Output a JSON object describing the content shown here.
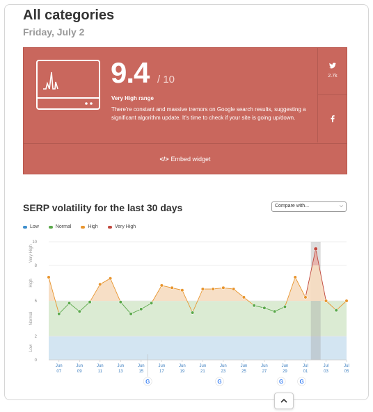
{
  "header": {
    "title": "All categories",
    "date": "Friday, July 2"
  },
  "score_panel": {
    "score": "9.4",
    "out_of": "/ 10",
    "range_label": "Very High range",
    "description": "There're constant and massive tremors on Google search results, suggesting a significant algorithm update. It's time to check if your site is going up/down.",
    "twitter_count": "2.7k",
    "embed_label": "Embed widget",
    "icons": [
      "monitor-icon",
      "twitter-icon",
      "facebook-icon",
      "code-icon"
    ],
    "background_color": "#c9675d"
  },
  "volatility": {
    "title": "SERP volatility for the last 30 days",
    "compare_placeholder": "Compare with..."
  },
  "chart_data": {
    "type": "line",
    "legend": [
      {
        "name": "Low",
        "color": "#3d8ecc"
      },
      {
        "name": "Normal",
        "color": "#5aa84a"
      },
      {
        "name": "High",
        "color": "#e8952e"
      },
      {
        "name": "Very High",
        "color": "#c0473d"
      }
    ],
    "y_ticks": [
      "0",
      "2",
      "5",
      "8",
      "10"
    ],
    "bands": [
      {
        "label": "Low",
        "from": 0,
        "to": 2,
        "color": "#d3e5f2"
      },
      {
        "label": "Normal",
        "from": 2,
        "to": 5,
        "color": "#dbebd3"
      },
      {
        "label": "High",
        "from": 5,
        "to": 8,
        "color": "#ffffff"
      },
      {
        "label": "Very High",
        "from": 8,
        "to": 10,
        "color": "#ffffff"
      }
    ],
    "x_labels": [
      {
        "month": "Jun",
        "day": "07"
      },
      {
        "month": "Jun",
        "day": "09"
      },
      {
        "month": "Jun",
        "day": "11"
      },
      {
        "month": "Jun",
        "day": "13"
      },
      {
        "month": "Jun",
        "day": "15"
      },
      {
        "month": "Jun",
        "day": "17"
      },
      {
        "month": "Jun",
        "day": "19"
      },
      {
        "month": "Jun",
        "day": "21"
      },
      {
        "month": "Jun",
        "day": "23"
      },
      {
        "month": "Jun",
        "day": "25"
      },
      {
        "month": "Jun",
        "day": "27"
      },
      {
        "month": "Jun",
        "day": "29"
      },
      {
        "month": "Jul",
        "day": "01"
      },
      {
        "month": "Jul",
        "day": "03"
      },
      {
        "month": "Jul",
        "day": "05"
      }
    ],
    "values": [
      7.0,
      3.9,
      4.8,
      4.1,
      4.9,
      6.4,
      6.9,
      4.9,
      3.9,
      4.3,
      4.8,
      6.3,
      6.1,
      5.9,
      4.0,
      6.0,
      6.0,
      6.1,
      6.0,
      5.3,
      4.6,
      4.4,
      4.1,
      4.5,
      7.0,
      5.3,
      9.4,
      5.0,
      4.2,
      5.0
    ],
    "highlight_index": 26,
    "google_update_days": [
      "Jun 16",
      "Jun 23",
      "Jun 29",
      "Jul 01"
    ],
    "ylim": [
      0,
      10
    ],
    "grid": true
  }
}
